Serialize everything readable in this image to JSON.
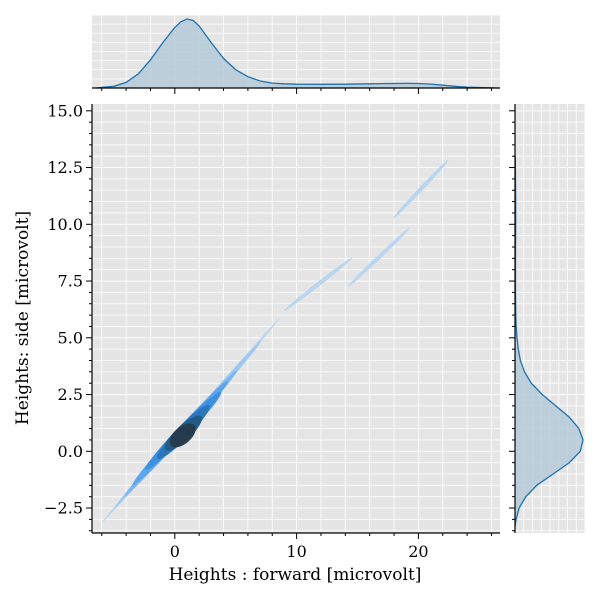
{
  "chart_data": {
    "type": "kde-joint",
    "xlabel": "Heights : forward [microvolt]",
    "ylabel": "Heights: side [microvolt]",
    "xlim": [
      -6.8,
      26.7
    ],
    "ylim": [
      -3.6,
      15.3
    ],
    "x_ticks": [
      0,
      10,
      20
    ],
    "x_tick_labels": [
      "0",
      "10",
      "20"
    ],
    "y_ticks": [
      -2.5,
      0.0,
      2.5,
      5.0,
      7.5,
      10.0,
      12.5,
      15.0
    ],
    "y_tick_labels": [
      "−2.5",
      "0.0",
      "2.5",
      "5.0",
      "7.5",
      "10.0",
      "12.5",
      "15.0"
    ],
    "grid": true,
    "joint_contours": [
      {
        "level": 1,
        "color": "#b7d4f0",
        "segments": [
          [
            [
              -5.9,
              -3.1
            ],
            [
              8.5,
              5.8
            ]
          ],
          [
            [
              9.0,
              6.2
            ],
            [
              14.5,
              8.5
            ]
          ],
          [
            [
              14.3,
              7.3
            ],
            [
              19.2,
              9.8
            ]
          ],
          [
            [
              18.0,
              10.3
            ],
            [
              22.4,
              12.8
            ]
          ]
        ]
      },
      {
        "level": 2,
        "color": "#9cc6ef",
        "segments": [
          [
            [
              -4.8,
              -2.4
            ],
            [
              7.0,
              4.8
            ]
          ]
        ]
      },
      {
        "level": 3,
        "color": "#7db6ee",
        "segments": [
          [
            [
              -4.0,
              -1.9
            ],
            [
              5.0,
              3.5
            ]
          ]
        ]
      },
      {
        "level": 4,
        "color": "#5aa4ec",
        "segments": [
          [
            [
              -3.3,
              -1.4
            ],
            [
              4.2,
              3.0
            ]
          ]
        ]
      },
      {
        "level": 5,
        "color": "#3b90de",
        "segments": [
          [
            [
              -2.2,
              -0.7
            ],
            [
              3.6,
              2.5
            ]
          ]
        ]
      },
      {
        "level": 6,
        "color": "#2a74b8",
        "segments": [
          [
            [
              -1.2,
              -0.2
            ],
            [
              2.6,
              1.9
            ]
          ]
        ]
      },
      {
        "level": 7,
        "color": "#245a84",
        "segments": [
          [
            [
              -0.5,
              0.2
            ],
            [
              1.9,
              1.4
            ]
          ]
        ]
      },
      {
        "level": 8,
        "color": "#263a4c",
        "segments": [
          [
            [
              0.0,
              0.4
            ],
            [
              1.3,
              1.0
            ]
          ]
        ]
      }
    ],
    "marginal_x_density": {
      "x": [
        -6.5,
        -5,
        -4,
        -3,
        -2,
        -1,
        0,
        0.5,
        1,
        1.5,
        2,
        3,
        4,
        5,
        6,
        7,
        8,
        9,
        10,
        12,
        14,
        16,
        18,
        19,
        20,
        21,
        22,
        23,
        24,
        26.5
      ],
      "density": [
        0.0,
        0.012,
        0.04,
        0.1,
        0.2,
        0.32,
        0.43,
        0.47,
        0.49,
        0.48,
        0.44,
        0.32,
        0.21,
        0.13,
        0.08,
        0.05,
        0.035,
        0.03,
        0.027,
        0.026,
        0.027,
        0.03,
        0.032,
        0.033,
        0.032,
        0.028,
        0.02,
        0.012,
        0.006,
        0.0
      ]
    },
    "marginal_y_density": {
      "y": [
        -3.3,
        -3,
        -2.5,
        -2,
        -1.5,
        -1,
        -0.5,
        0,
        0.5,
        1,
        1.5,
        2,
        2.5,
        3,
        3.5,
        4,
        4.5,
        5,
        5.5,
        6,
        7,
        8,
        9,
        10,
        11,
        12,
        13
      ],
      "density": [
        0.0,
        0.008,
        0.03,
        0.08,
        0.16,
        0.28,
        0.4,
        0.48,
        0.5,
        0.47,
        0.4,
        0.3,
        0.2,
        0.12,
        0.07,
        0.04,
        0.024,
        0.015,
        0.009,
        0.006,
        0.004,
        0.004,
        0.004,
        0.005,
        0.005,
        0.004,
        0.002
      ]
    },
    "colors": {
      "panel_bg": "#e5e5e5",
      "grid": "#ffffff",
      "marginal_fill": "#b4cad8",
      "marginal_line": "#1f72b0"
    }
  }
}
